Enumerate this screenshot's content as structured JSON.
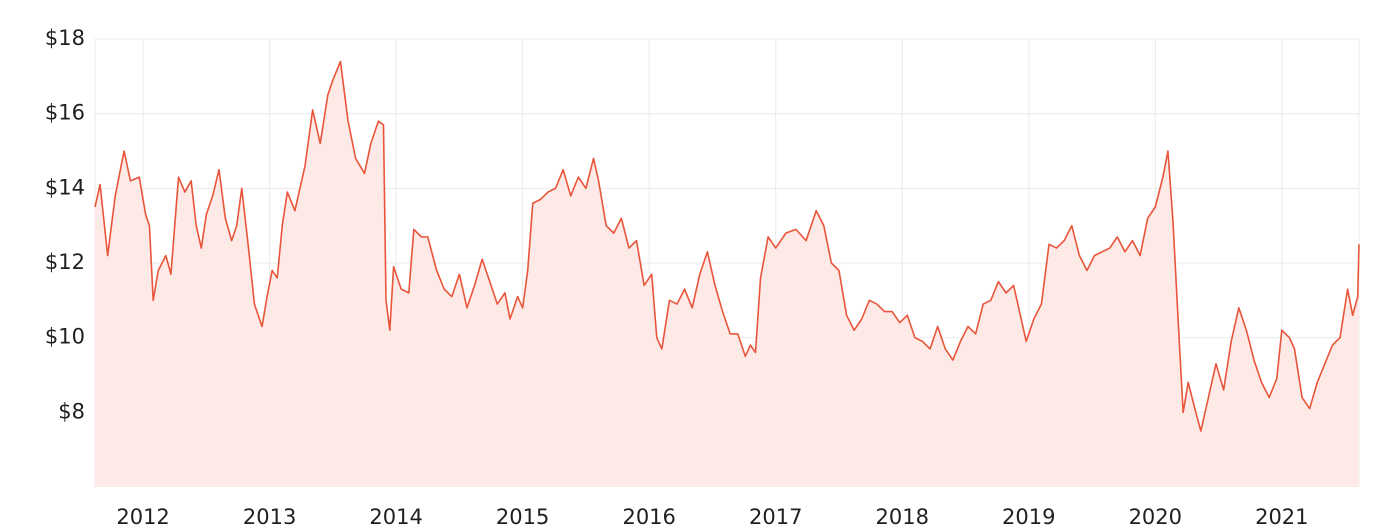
{
  "chart_data": {
    "type": "area",
    "x": [
      2011.62,
      2011.66,
      2011.72,
      2011.78,
      2011.85,
      2011.9,
      2011.97,
      2012.02,
      2012.05,
      2012.08,
      2012.12,
      2012.18,
      2012.22,
      2012.28,
      2012.33,
      2012.38,
      2012.42,
      2012.46,
      2012.5,
      2012.55,
      2012.6,
      2012.65,
      2012.7,
      2012.74,
      2012.78,
      2012.83,
      2012.88,
      2012.94,
      2012.98,
      2013.02,
      2013.06,
      2013.1,
      2013.14,
      2013.2,
      2013.28,
      2013.34,
      2013.4,
      2013.46,
      2013.5,
      2013.56,
      2013.62,
      2013.68,
      2013.75,
      2013.8,
      2013.86,
      2013.9,
      2013.92,
      2013.95,
      2013.98,
      2014.04,
      2014.1,
      2014.14,
      2014.2,
      2014.25,
      2014.32,
      2014.38,
      2014.44,
      2014.5,
      2014.56,
      2014.62,
      2014.68,
      2014.74,
      2014.8,
      2014.86,
      2014.9,
      2014.96,
      2015.0,
      2015.04,
      2015.08,
      2015.14,
      2015.2,
      2015.26,
      2015.32,
      2015.38,
      2015.44,
      2015.5,
      2015.56,
      2015.6,
      2015.66,
      2015.72,
      2015.78,
      2015.84,
      2015.9,
      2015.96,
      2016.02,
      2016.06,
      2016.1,
      2016.16,
      2016.22,
      2016.28,
      2016.34,
      2016.4,
      2016.46,
      2016.52,
      2016.58,
      2016.64,
      2016.7,
      2016.76,
      2016.8,
      2016.84,
      2016.88,
      2016.94,
      2017.0,
      2017.08,
      2017.16,
      2017.24,
      2017.32,
      2017.38,
      2017.44,
      2017.5,
      2017.56,
      2017.62,
      2017.68,
      2017.74,
      2017.8,
      2017.86,
      2017.92,
      2017.98,
      2018.04,
      2018.1,
      2018.16,
      2018.22,
      2018.28,
      2018.34,
      2018.4,
      2018.46,
      2018.52,
      2018.58,
      2018.64,
      2018.7,
      2018.76,
      2018.82,
      2018.88,
      2018.94,
      2018.98,
      2019.04,
      2019.1,
      2019.16,
      2019.22,
      2019.28,
      2019.34,
      2019.4,
      2019.46,
      2019.52,
      2019.58,
      2019.64,
      2019.7,
      2019.76,
      2019.82,
      2019.88,
      2019.94,
      2020.0,
      2020.06,
      2020.1,
      2020.14,
      2020.18,
      2020.22,
      2020.26,
      2020.32,
      2020.36,
      2020.42,
      2020.48,
      2020.54,
      2020.6,
      2020.66,
      2020.72,
      2020.78,
      2020.84,
      2020.9,
      2020.96,
      2021.0,
      2021.06,
      2021.1,
      2021.16,
      2021.22,
      2021.28,
      2021.34,
      2021.4,
      2021.46,
      2021.52,
      2021.56,
      2021.6,
      2021.61
    ],
    "values": [
      13.5,
      14.1,
      12.2,
      13.8,
      15.0,
      14.2,
      14.3,
      13.3,
      13.0,
      11.0,
      11.8,
      12.2,
      11.7,
      14.3,
      13.9,
      14.2,
      13.0,
      12.4,
      13.3,
      13.8,
      14.5,
      13.2,
      12.6,
      13.0,
      14.0,
      12.5,
      10.9,
      10.3,
      11.1,
      11.8,
      11.6,
      13.0,
      13.9,
      13.4,
      14.6,
      16.1,
      15.2,
      16.5,
      16.9,
      17.4,
      15.8,
      14.8,
      14.4,
      15.2,
      15.8,
      15.7,
      11.0,
      10.2,
      11.9,
      11.3,
      11.2,
      12.9,
      12.7,
      12.7,
      11.8,
      11.3,
      11.1,
      11.7,
      10.8,
      11.4,
      12.1,
      11.5,
      10.9,
      11.2,
      10.5,
      11.1,
      10.8,
      11.8,
      13.6,
      13.7,
      13.9,
      14.0,
      14.5,
      13.8,
      14.3,
      14.0,
      14.8,
      14.2,
      13.0,
      12.8,
      13.2,
      12.4,
      12.6,
      11.4,
      11.7,
      10.0,
      9.7,
      11.0,
      10.9,
      11.3,
      10.8,
      11.7,
      12.3,
      11.4,
      10.7,
      10.1,
      10.1,
      9.5,
      9.8,
      9.6,
      11.6,
      12.7,
      12.4,
      12.8,
      12.9,
      12.6,
      13.4,
      13.0,
      12.0,
      11.8,
      10.6,
      10.2,
      10.5,
      11.0,
      10.9,
      10.7,
      10.7,
      10.4,
      10.6,
      10.0,
      9.9,
      9.7,
      10.3,
      9.7,
      9.4,
      9.9,
      10.3,
      10.1,
      10.9,
      11.0,
      11.5,
      11.2,
      11.4,
      10.5,
      9.9,
      10.5,
      10.9,
      12.5,
      12.4,
      12.6,
      13.0,
      12.2,
      11.8,
      12.2,
      12.3,
      12.4,
      12.7,
      12.3,
      12.6,
      12.2,
      13.2,
      13.5,
      14.3,
      15.0,
      13.1,
      10.5,
      8.0,
      8.8,
      8.0,
      7.5,
      8.4,
      9.3,
      8.6,
      9.9,
      10.8,
      10.2,
      9.4,
      8.8,
      8.4,
      8.9,
      10.2,
      10.0,
      9.7,
      8.4,
      8.1,
      8.8,
      9.3,
      9.8,
      10.0,
      11.3,
      10.6,
      11.1,
      12.5
    ],
    "color": "#e8553a",
    "fill_color": "#fde9e6",
    "xlim": [
      2011.62,
      2021.61
    ],
    "xticks": [
      2012,
      2013,
      2014,
      2015,
      2016,
      2017,
      2018,
      2019,
      2020,
      2021
    ],
    "ylim": [
      6,
      18
    ],
    "yticks": [
      {
        "value": 8,
        "label": "$8"
      },
      {
        "value": 10,
        "label": "$10"
      },
      {
        "value": 12,
        "label": "$12"
      },
      {
        "value": 14,
        "label": "$14"
      },
      {
        "value": 16,
        "label": "$16"
      },
      {
        "value": 18,
        "label": "$18"
      }
    ],
    "grid": true
  }
}
